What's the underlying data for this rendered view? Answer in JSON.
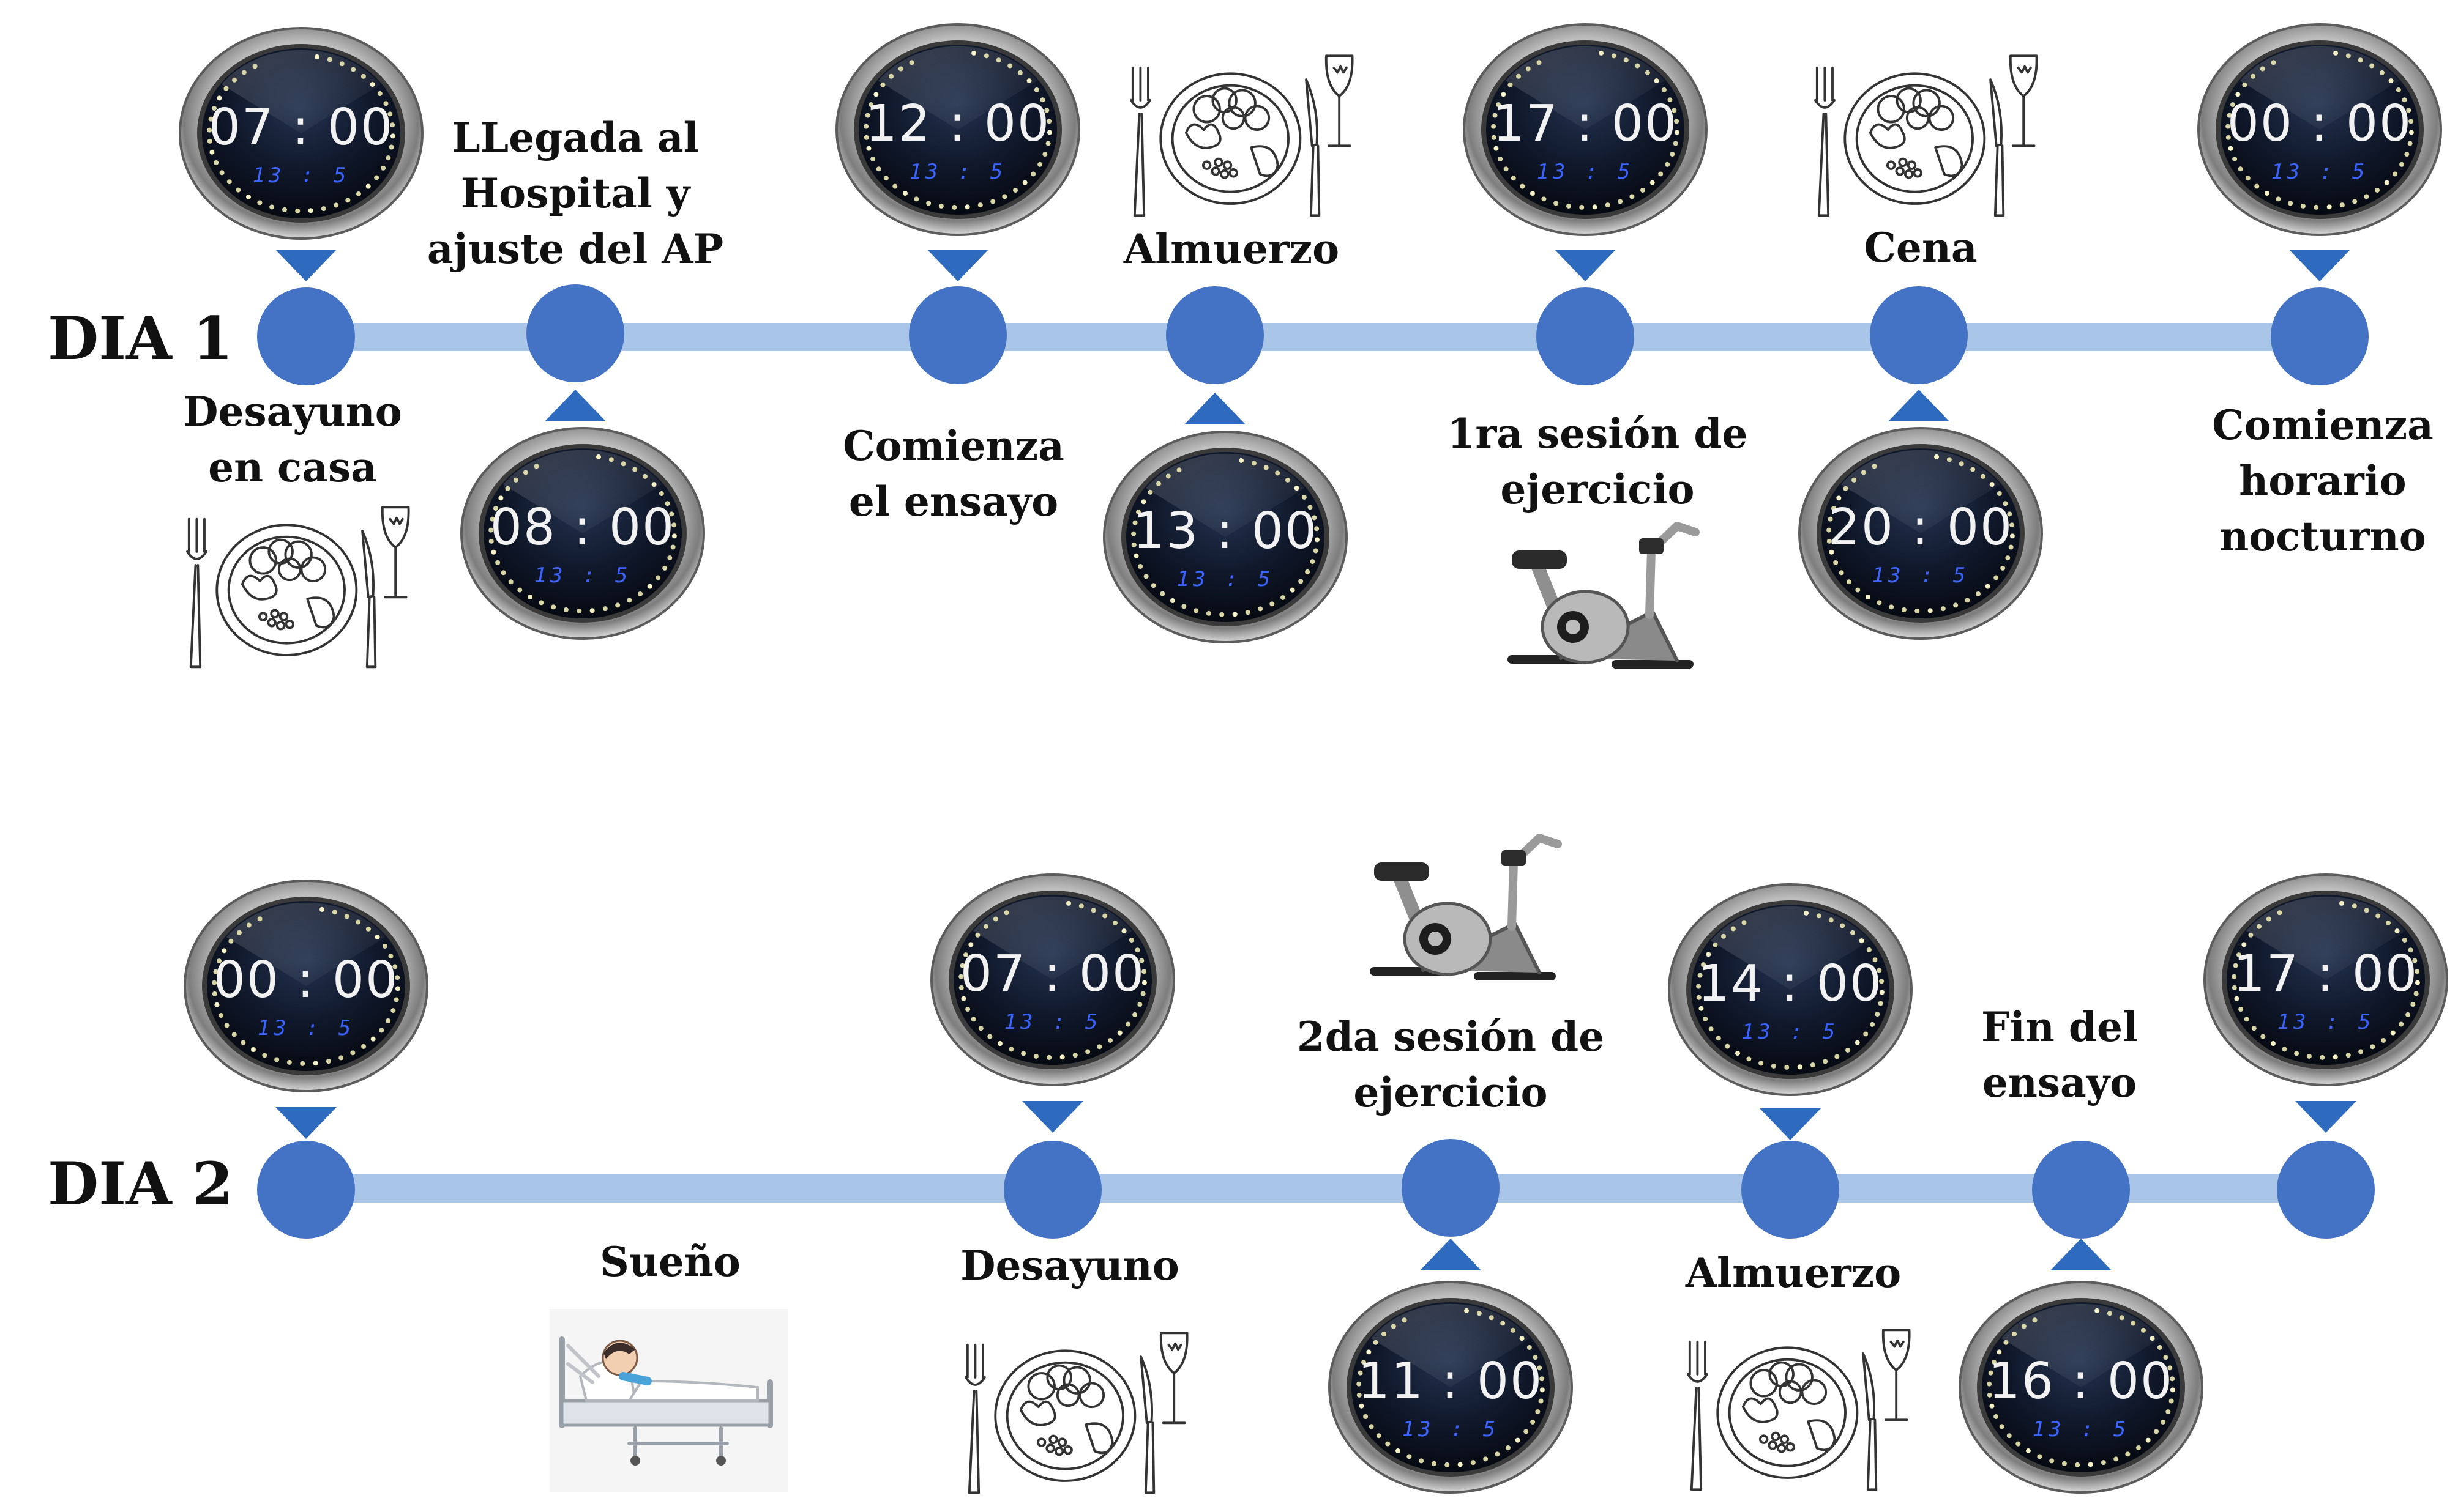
{
  "days": [
    {
      "label": "DIA 1",
      "events": [
        {
          "time": "07 : 00",
          "seconds": "13 : 5",
          "caption": [
            "Desayuno",
            "en casa"
          ],
          "icon": "meal-plate-icon"
        },
        {
          "time": "08 : 00",
          "seconds": "13 : 5",
          "caption": [
            "LLegada al",
            "Hospital y",
            "ajuste del AP"
          ],
          "icon": ""
        },
        {
          "time": "12 : 00",
          "seconds": "13 : 5",
          "caption": [
            "Comienza",
            "el ensayo"
          ],
          "icon": ""
        },
        {
          "time": "13 : 00",
          "seconds": "13 : 5",
          "caption": [
            "Almuerzo"
          ],
          "icon": "meal-plate-icon"
        },
        {
          "time": "17 : 00",
          "seconds": "13 : 5",
          "caption": [
            "1ra sesión de",
            "ejercicio"
          ],
          "icon": "exercise-bike-icon"
        },
        {
          "time": "20 : 00",
          "seconds": "13 : 5",
          "caption": [
            "Cena"
          ],
          "icon": "meal-plate-icon"
        },
        {
          "time": "00 : 00",
          "seconds": "13 : 5",
          "caption": [
            "Comienza",
            "horario",
            "nocturno"
          ],
          "icon": ""
        }
      ]
    },
    {
      "label": "DIA 2",
      "events": [
        {
          "time": "00 : 00",
          "seconds": "13 : 5",
          "caption": [],
          "icon": ""
        },
        {
          "time": "",
          "seconds": "",
          "caption": [
            "Sueño"
          ],
          "icon": "hospital-bed-icon"
        },
        {
          "time": "07 : 00",
          "seconds": "13 : 5",
          "caption": [
            "Desayuno"
          ],
          "icon": "meal-plate-icon"
        },
        {
          "time": "11 : 00",
          "seconds": "13 : 5",
          "caption": [
            "2da sesión de",
            "ejercicio"
          ],
          "icon": "exercise-bike-icon"
        },
        {
          "time": "14 : 00",
          "seconds": "13 : 5",
          "caption": [
            "Almuerzo"
          ],
          "icon": "meal-plate-icon"
        },
        {
          "time": "16 : 00",
          "seconds": "13 : 5",
          "caption": [
            "Fin del",
            "ensayo"
          ],
          "icon": ""
        },
        {
          "time": "17 : 00",
          "seconds": "13 : 5",
          "caption": [],
          "icon": ""
        }
      ]
    }
  ],
  "colors": {
    "node": "#4472c4",
    "bar": "#a9c6e8",
    "arrow": "#2e6bbf",
    "clock_face": "#0c1322",
    "clock_digits": "#3a63ff"
  }
}
